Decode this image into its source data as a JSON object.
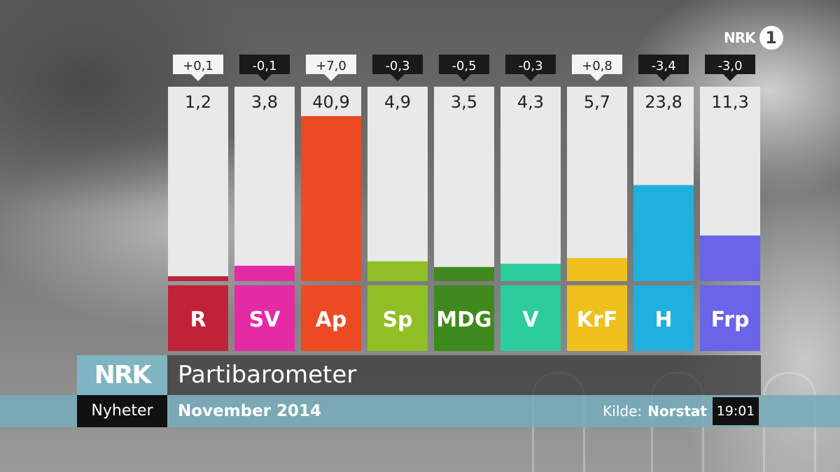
{
  "channel": {
    "logo_text": "NRK",
    "channel_number": "1"
  },
  "lower_third": {
    "logo_text": "NRK",
    "title": "Partibarometer",
    "program": "Nyheter",
    "date": "November 2014",
    "source_label": "Kilde:",
    "source_name": "Norstat",
    "clock": "19:01"
  },
  "chart_data": {
    "type": "bar",
    "title": "Partibarometer",
    "categories": [
      "R",
      "SV",
      "Ap",
      "Sp",
      "MDG",
      "V",
      "KrF",
      "H",
      "Frp"
    ],
    "values": [
      1.2,
      3.8,
      40.9,
      4.9,
      3.5,
      4.3,
      5.7,
      23.8,
      11.3
    ],
    "value_labels": [
      "1,2",
      "3,8",
      "40,9",
      "4,9",
      "3,5",
      "4,3",
      "5,7",
      "23,8",
      "11,3"
    ],
    "changes": [
      0.1,
      -0.1,
      7.0,
      -0.3,
      -0.5,
      -0.3,
      0.8,
      -3.4,
      -3.0
    ],
    "change_labels": [
      "+0,1",
      "-0,1",
      "+7,0",
      "-0,3",
      "-0,5",
      "-0,3",
      "+0,8",
      "-3,4",
      "-3,0"
    ],
    "colors": [
      "#c0223a",
      "#e52aa6",
      "#ec4a22",
      "#8fbf24",
      "#3f8a1e",
      "#2dcc9d",
      "#f0c01c",
      "#1fb0df",
      "#6a64e8"
    ],
    "ylim": [
      0,
      40.9
    ],
    "grid": false,
    "legend": "none"
  }
}
